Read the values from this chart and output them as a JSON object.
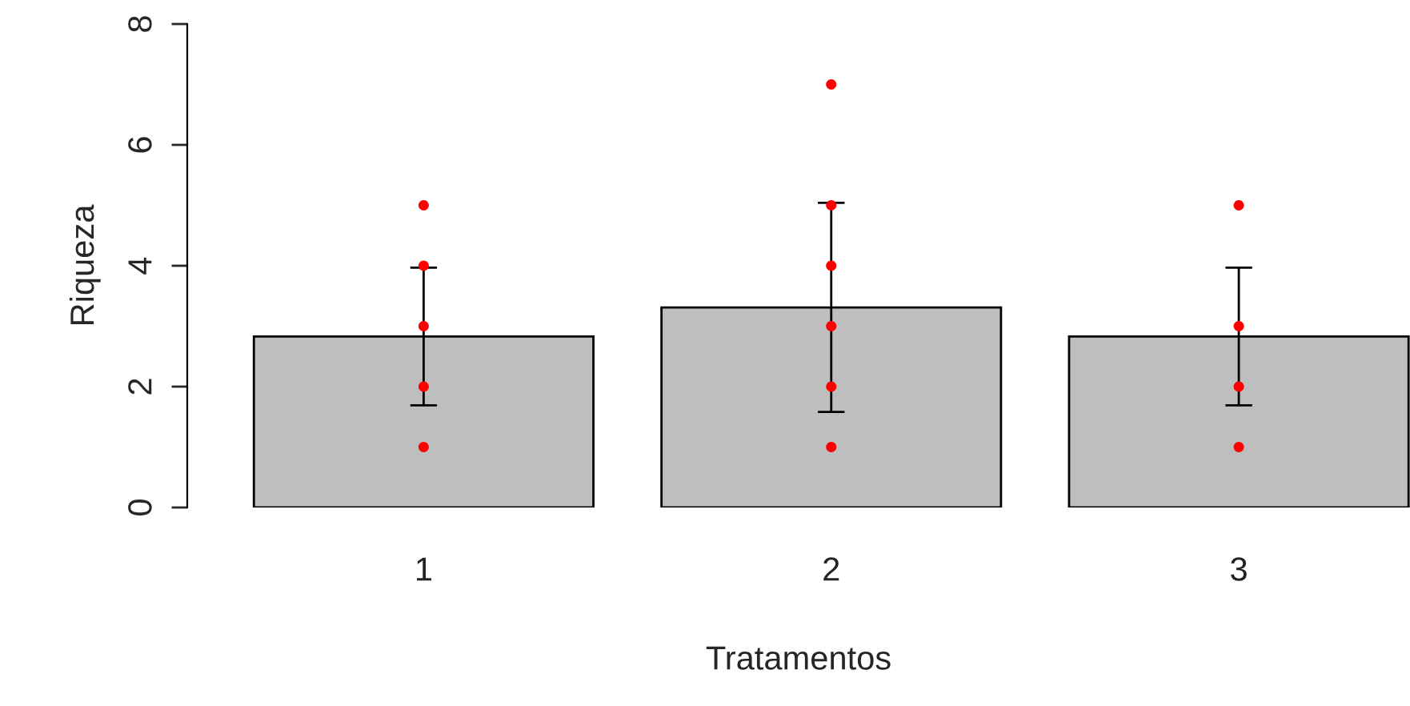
{
  "chart_data": {
    "type": "bar",
    "xlabel": "Tratamentos",
    "ylabel": "Riqueza",
    "categories": [
      "1",
      "2",
      "3"
    ],
    "series": [
      {
        "color": "#bebebe",
        "values": [
          2.83,
          3.31,
          2.83
        ],
        "errors": [
          1.14,
          1.73,
          1.14
        ]
      },
      {
        "type": "scatter",
        "color": "#ff0000",
        "x": [
          "1",
          "1",
          "1",
          "1",
          "1",
          "2",
          "2",
          "2",
          "2",
          "2",
          "2",
          "3",
          "3",
          "3",
          "3"
        ],
        "values": [
          1,
          2,
          3,
          4,
          5,
          1,
          2,
          3,
          4,
          5,
          7,
          1,
          2,
          3,
          5
        ]
      }
    ],
    "ylim": [
      0,
      8
    ],
    "yticks": [
      0,
      2,
      4,
      6,
      8
    ],
    "grid": false,
    "legend": false,
    "marker": "circle"
  }
}
